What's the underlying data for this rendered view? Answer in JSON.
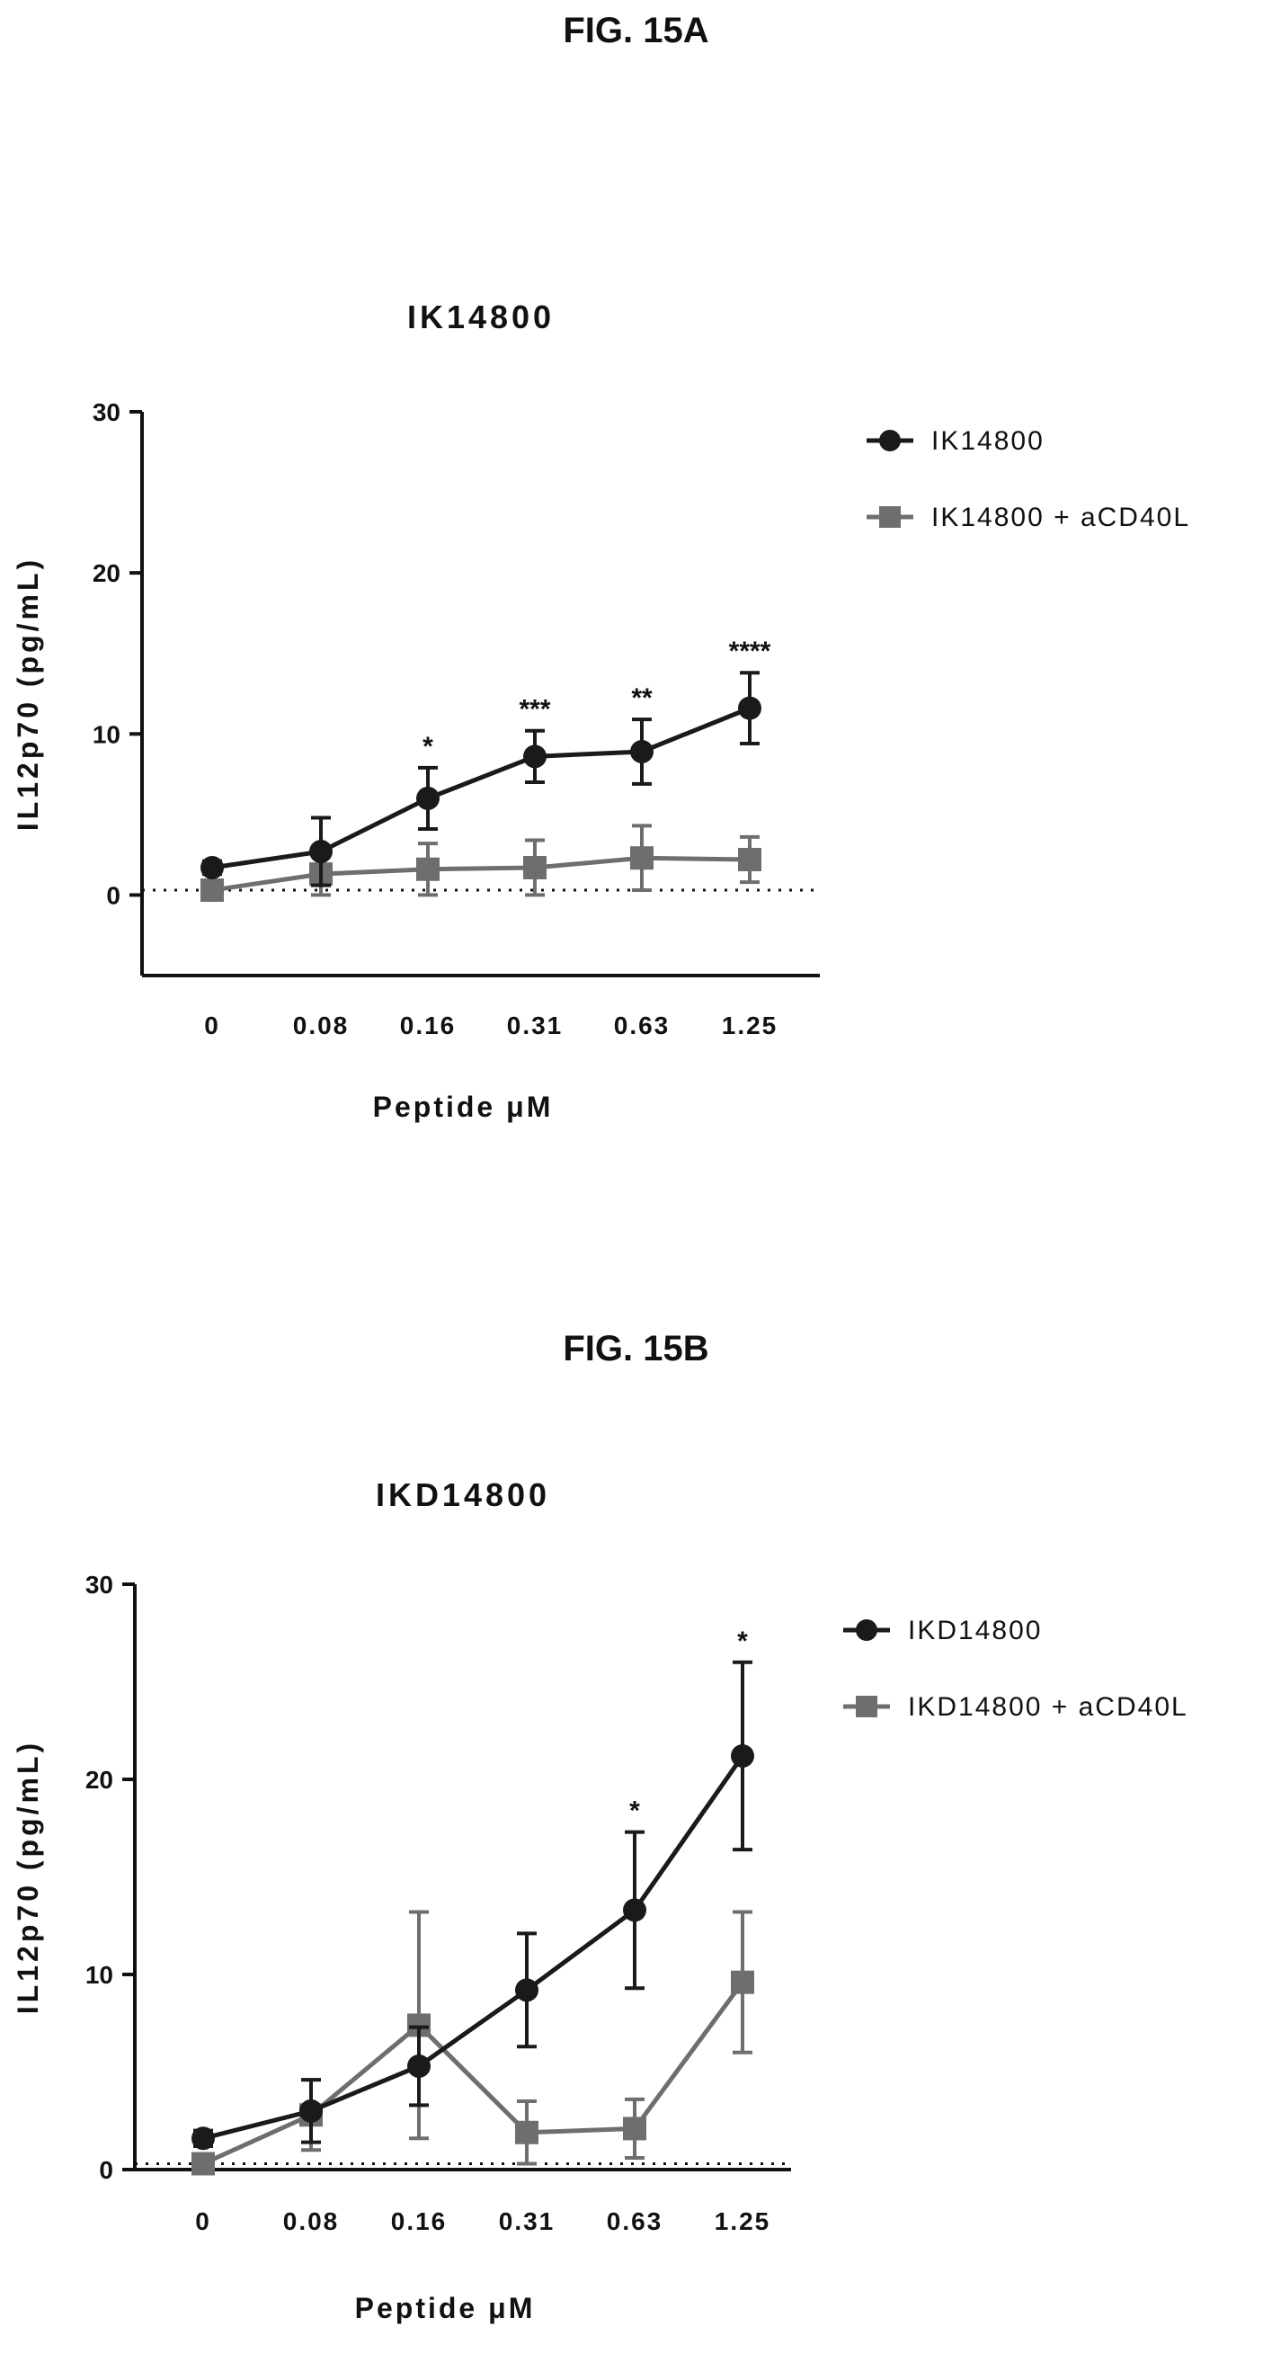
{
  "figures": [
    {
      "label": "FIG. 15A"
    },
    {
      "label": "FIG. 15B"
    }
  ],
  "chart_data": [
    {
      "type": "line",
      "title": "IK14800",
      "xlabel": "Peptide μM",
      "ylabel": "IL12p70 (pg/mL)",
      "categories": [
        "0",
        "0.08",
        "0.16",
        "0.31",
        "0.63",
        "1.25"
      ],
      "ylim": [
        -5,
        30
      ],
      "yticks": [
        "0",
        "10",
        "20",
        "30"
      ],
      "reference_line_y": 0.3,
      "legend_position": "right",
      "grid": false,
      "series": [
        {
          "name": "IK14800",
          "marker": "circle",
          "color": "#1a1a1a",
          "values": [
            1.7,
            2.7,
            6.0,
            8.6,
            8.9,
            11.6
          ],
          "errors": [
            0.4,
            2.1,
            1.9,
            1.6,
            2.0,
            2.2
          ],
          "significance": [
            "",
            "",
            "*",
            "***",
            "**",
            "****"
          ]
        },
        {
          "name": "IK14800 + aCD40L",
          "marker": "square",
          "color": "#6e6e6e",
          "values": [
            0.3,
            1.3,
            1.6,
            1.7,
            2.3,
            2.2
          ],
          "errors": [
            0.3,
            1.3,
            1.6,
            1.7,
            2.0,
            1.4
          ],
          "significance": [
            "",
            "",
            "",
            "",
            "",
            ""
          ]
        }
      ]
    },
    {
      "type": "line",
      "title": "IKD14800",
      "xlabel": "Peptide μM",
      "ylabel": "IL12p70 (pg/mL)",
      "categories": [
        "0",
        "0.08",
        "0.16",
        "0.31",
        "0.63",
        "1.25"
      ],
      "ylim": [
        0,
        30
      ],
      "yticks": [
        "0",
        "10",
        "20",
        "30"
      ],
      "reference_line_y": 0.3,
      "legend_position": "right",
      "grid": false,
      "series": [
        {
          "name": "IKD14800",
          "marker": "circle",
          "color": "#1a1a1a",
          "values": [
            1.6,
            3.0,
            5.3,
            9.2,
            13.3,
            21.2
          ],
          "errors": [
            0.4,
            1.6,
            2.0,
            2.9,
            4.0,
            4.8
          ],
          "significance": [
            "",
            "",
            "",
            "",
            "*",
            "*"
          ]
        },
        {
          "name": "IKD14800 + aCD40L",
          "marker": "square",
          "color": "#6e6e6e",
          "values": [
            0.3,
            2.8,
            7.4,
            1.9,
            2.1,
            9.6
          ],
          "errors": [
            0.3,
            1.8,
            5.8,
            1.6,
            1.5,
            3.6
          ],
          "significance": [
            "",
            "",
            "",
            "",
            "",
            ""
          ]
        }
      ]
    }
  ]
}
